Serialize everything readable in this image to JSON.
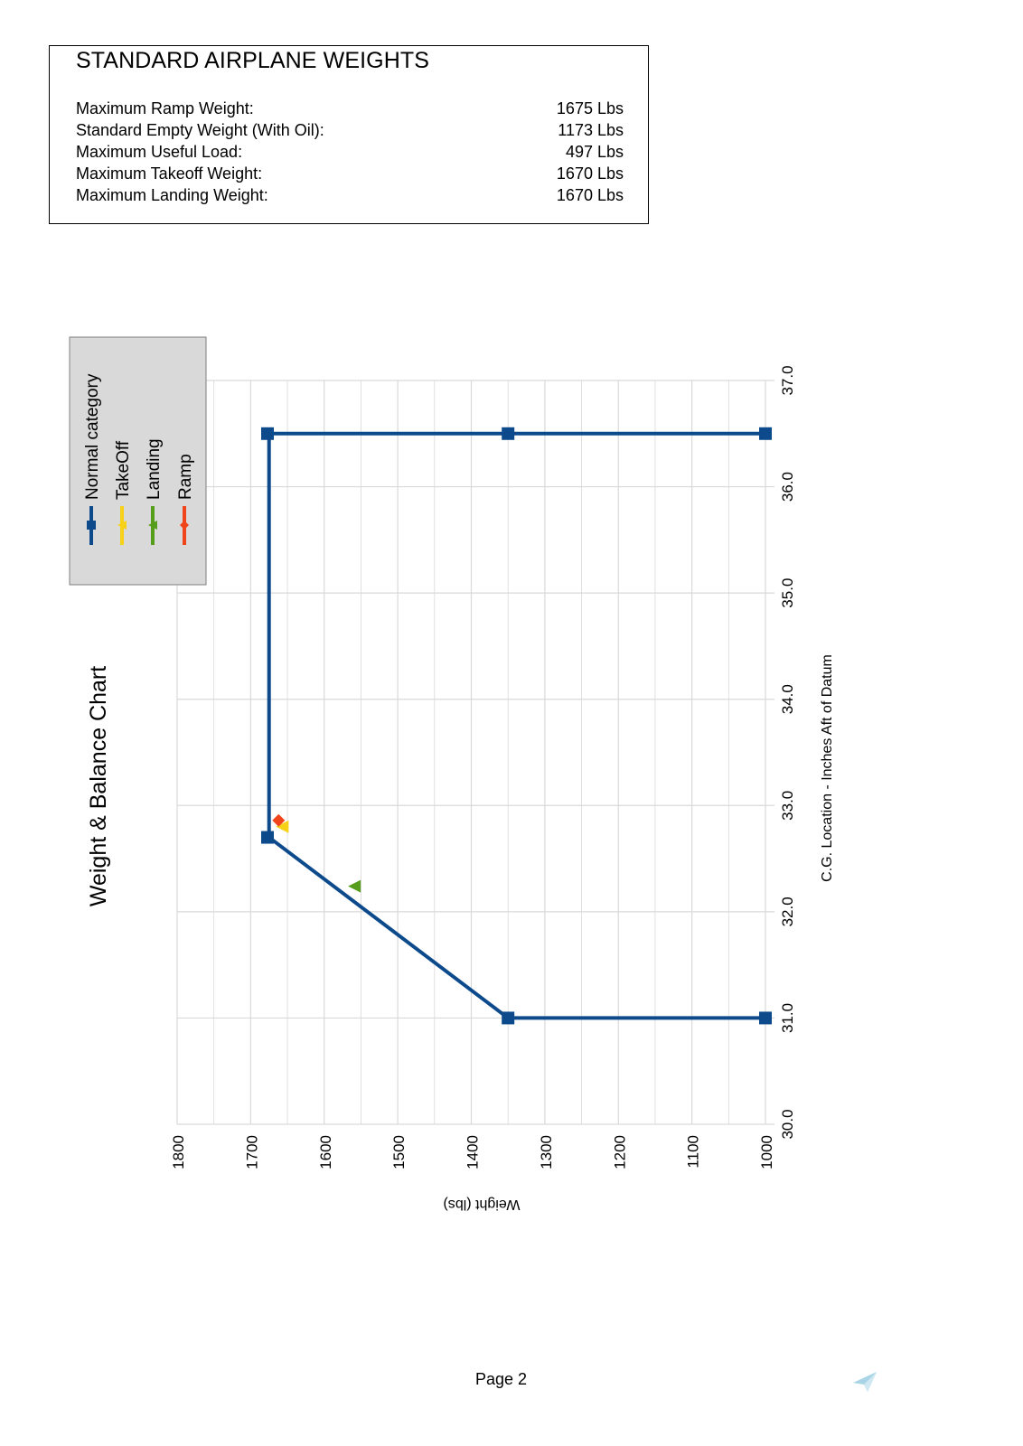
{
  "weights_box": {
    "title": "STANDARD AIRPLANE WEIGHTS",
    "rows": [
      {
        "label": "Maximum Ramp Weight:",
        "value": "1675 Lbs"
      },
      {
        "label": "Standard Empty Weight (With Oil):",
        "value": "1173 Lbs"
      },
      {
        "label": "Maximum Useful Load:",
        "value": "497 Lbs"
      },
      {
        "label": "Maximum Takeoff Weight:",
        "value": "1670 Lbs"
      },
      {
        "label": "Maximum Landing Weight:",
        "value": "1670 Lbs"
      }
    ]
  },
  "footer": {
    "page_label": "Page 2",
    "icon": "paper-plane-icon"
  },
  "colors": {
    "normal": "#0d4a8c",
    "takeoff": "#f7d117",
    "landing": "#579d1c",
    "ramp": "#f0441b",
    "legend_bg": "#d9d9d9",
    "grid": "#d9d9d9"
  },
  "chart_data": {
    "type": "scatter",
    "title": "Weight & Balance Chart",
    "xlabel": "C.G. Location - Inches Aft of Datum",
    "ylabel": "Weight (lbs)",
    "orientation_note": "page rotated 90deg: CG axis runs vertically, weight axis horizontally (1800 left to 1000 right)",
    "xlim": [
      30.0,
      37.0
    ],
    "ylim": [
      1000,
      1800
    ],
    "x_ticks": [
      "30.0",
      "31.0",
      "32.0",
      "33.0",
      "34.0",
      "35.0",
      "36.0",
      "37.0"
    ],
    "y_ticks": [
      "1800",
      "1700",
      "1600",
      "1500",
      "1400",
      "1300",
      "1200",
      "1100",
      "1000"
    ],
    "grid": true,
    "legend_position": "top-left",
    "series": [
      {
        "name": "Normal category",
        "marker": "square",
        "line": true,
        "points": [
          {
            "cg": 31.0,
            "weight": 1000
          },
          {
            "cg": 31.0,
            "weight": 1350
          },
          {
            "cg": 32.7,
            "weight": 1675
          },
          {
            "cg": 36.5,
            "weight": 1675
          },
          {
            "cg": 36.5,
            "weight": 1350
          },
          {
            "cg": 36.5,
            "weight": 1000
          }
        ]
      },
      {
        "name": "TakeOff",
        "marker": "triangle",
        "line": false,
        "points": [
          {
            "cg": 32.8,
            "weight": 1657
          }
        ]
      },
      {
        "name": "Landing",
        "marker": "triangle",
        "line": false,
        "points": [
          {
            "cg": 32.24,
            "weight": 1559
          }
        ]
      },
      {
        "name": "Ramp",
        "marker": "diamond",
        "line": false,
        "points": [
          {
            "cg": 32.86,
            "weight": 1662
          }
        ]
      }
    ]
  }
}
